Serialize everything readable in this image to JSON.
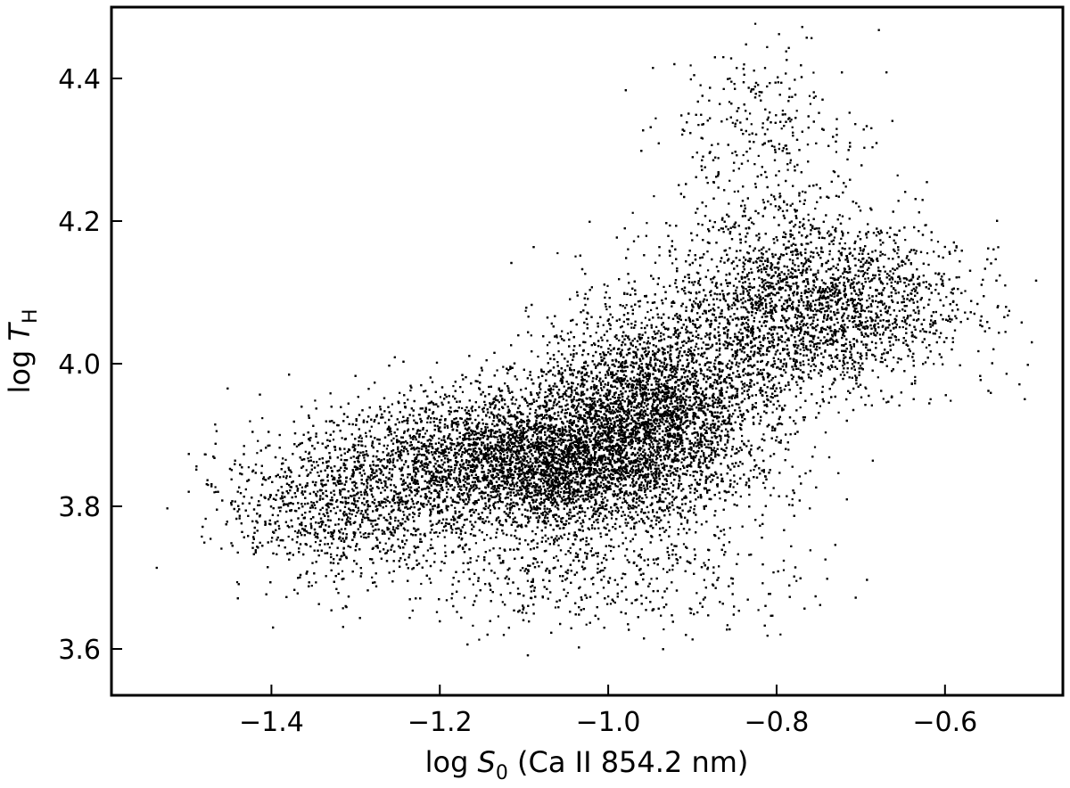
{
  "chart_data": {
    "type": "scatter",
    "xlabel": "log S0 (Ca II 854.2 nm)",
    "xlabel_parts": {
      "prefix": "log ",
      "symbol": "S",
      "sub": "0",
      "suffix": " (Ca II 854.2 nm)"
    },
    "ylabel": "log TH",
    "ylabel_parts": {
      "prefix": "log ",
      "symbol": "T",
      "sub": "H"
    },
    "xlim": [
      -1.59,
      -0.46
    ],
    "ylim": [
      3.535,
      4.5
    ],
    "xticks": [
      -1.4,
      -1.2,
      -1.0,
      -0.8,
      -0.6
    ],
    "xtick_labels": [
      "−1.4",
      "−1.2",
      "−1.0",
      "−0.8",
      "−0.6"
    ],
    "yticks": [
      3.6,
      3.8,
      4.0,
      4.2,
      4.4
    ],
    "ytick_labels": [
      "3.6",
      "3.8",
      "4.0",
      "4.2",
      "4.4"
    ],
    "grid": false,
    "legend": "none",
    "marker_color": "#000000",
    "approx_point_count": 30000,
    "distribution": [
      {
        "region": "main-body",
        "x_mean": -1.08,
        "y_mean": 3.86,
        "x_sd": 0.11,
        "y_sd": 0.05,
        "weight": 0.4
      },
      {
        "region": "ridge",
        "x_mean": -0.95,
        "y_mean": 3.95,
        "x_sd": 0.07,
        "y_sd": 0.06,
        "weight": 0.22
      },
      {
        "region": "upper-right",
        "x_mean": -0.76,
        "y_mean": 4.08,
        "x_sd": 0.09,
        "y_sd": 0.06,
        "weight": 0.22
      },
      {
        "region": "left-tail",
        "x_mean": -1.32,
        "y_mean": 3.8,
        "x_sd": 0.07,
        "y_sd": 0.05,
        "weight": 0.09
      },
      {
        "region": "upper-plume",
        "x_mean": -0.82,
        "y_mean": 4.3,
        "x_sd": 0.06,
        "y_sd": 0.08,
        "weight": 0.03
      },
      {
        "region": "low-scatter",
        "x_mean": -1.02,
        "y_mean": 3.7,
        "x_sd": 0.12,
        "y_sd": 0.04,
        "weight": 0.04
      }
    ]
  }
}
